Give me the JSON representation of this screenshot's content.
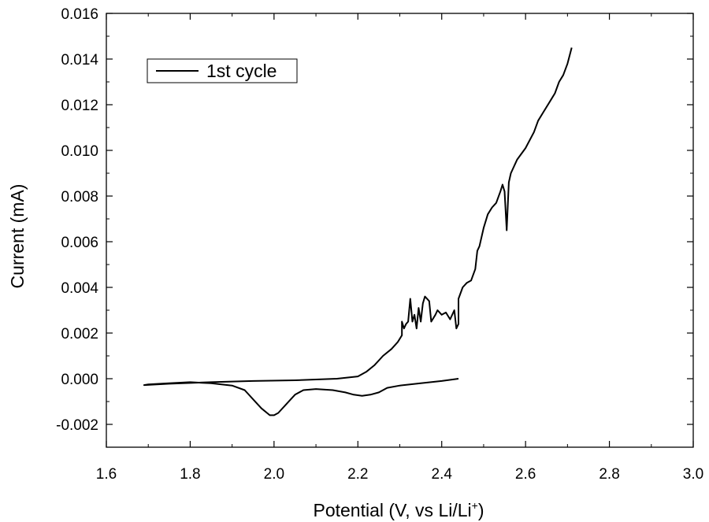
{
  "chart_data": {
    "type": "line",
    "title": "",
    "xlabel": "Potential (V, vs Li/Li",
    "xlabel_sup": "+",
    "xlabel_tail": ")",
    "ylabel": "Current (mA)",
    "xlim": [
      1.6,
      3.0
    ],
    "ylim": [
      -0.003,
      0.016
    ],
    "x_ticks": [
      1.6,
      1.8,
      2.0,
      2.2,
      2.4,
      2.6,
      2.8,
      3.0
    ],
    "x_tick_labels": [
      "1.6",
      "1.8",
      "2.0",
      "2.2",
      "2.4",
      "2.6",
      "2.8",
      "3.0"
    ],
    "y_ticks": [
      -0.002,
      0.0,
      0.002,
      0.004,
      0.006,
      0.008,
      0.01,
      0.012,
      0.014,
      0.016
    ],
    "y_tick_labels": [
      "-0.002",
      "0.000",
      "0.002",
      "0.004",
      "0.006",
      "0.008",
      "0.010",
      "0.012",
      "0.014",
      "0.016"
    ],
    "grid": false,
    "legend_position": "top-left",
    "series": [
      {
        "name": "1st cycle",
        "color": "#000000",
        "points": [
          [
            2.44,
            0.0
          ],
          [
            2.4,
            -0.0001
          ],
          [
            2.35,
            -0.0002
          ],
          [
            2.3,
            -0.0003
          ],
          [
            2.27,
            -0.0004
          ],
          [
            2.25,
            -0.0006
          ],
          [
            2.23,
            -0.0007
          ],
          [
            2.21,
            -0.00075
          ],
          [
            2.19,
            -0.0007
          ],
          [
            2.17,
            -0.0006
          ],
          [
            2.14,
            -0.0005
          ],
          [
            2.1,
            -0.00045
          ],
          [
            2.07,
            -0.0005
          ],
          [
            2.05,
            -0.0007
          ],
          [
            2.03,
            -0.0011
          ],
          [
            2.01,
            -0.0015
          ],
          [
            2.0,
            -0.0016
          ],
          [
            1.99,
            -0.0016
          ],
          [
            1.97,
            -0.0013
          ],
          [
            1.95,
            -0.0009
          ],
          [
            1.93,
            -0.0005
          ],
          [
            1.9,
            -0.0003
          ],
          [
            1.85,
            -0.0002
          ],
          [
            1.8,
            -0.00015
          ],
          [
            1.75,
            -0.0002
          ],
          [
            1.7,
            -0.00025
          ],
          [
            1.69,
            -0.00028
          ],
          [
            1.75,
            -0.00022
          ],
          [
            1.85,
            -0.00015
          ],
          [
            1.95,
            -0.0001
          ],
          [
            2.05,
            -7e-05
          ],
          [
            2.15,
            0.0
          ],
          [
            2.2,
            0.0001
          ],
          [
            2.22,
            0.0003
          ],
          [
            2.24,
            0.0006
          ],
          [
            2.26,
            0.001
          ],
          [
            2.28,
            0.0013
          ],
          [
            2.295,
            0.0016
          ],
          [
            2.305,
            0.0019
          ],
          [
            2.305,
            0.0025
          ],
          [
            2.31,
            0.0022
          ],
          [
            2.315,
            0.0024
          ],
          [
            2.32,
            0.0025
          ],
          [
            2.325,
            0.0035
          ],
          [
            2.33,
            0.0025
          ],
          [
            2.335,
            0.0028
          ],
          [
            2.34,
            0.0022
          ],
          [
            2.345,
            0.0031
          ],
          [
            2.35,
            0.0025
          ],
          [
            2.355,
            0.0033
          ],
          [
            2.36,
            0.0036
          ],
          [
            2.37,
            0.0034
          ],
          [
            2.375,
            0.0025
          ],
          [
            2.385,
            0.0028
          ],
          [
            2.39,
            0.003
          ],
          [
            2.4,
            0.0028
          ],
          [
            2.41,
            0.0029
          ],
          [
            2.42,
            0.0026
          ],
          [
            2.43,
            0.003
          ],
          [
            2.435,
            0.0022
          ],
          [
            2.44,
            0.0024
          ],
          [
            2.44,
            0.0035
          ],
          [
            2.45,
            0.004
          ],
          [
            2.46,
            0.0042
          ],
          [
            2.47,
            0.0043
          ],
          [
            2.48,
            0.0048
          ],
          [
            2.485,
            0.0056
          ],
          [
            2.49,
            0.0058
          ],
          [
            2.5,
            0.0066
          ],
          [
            2.51,
            0.0072
          ],
          [
            2.52,
            0.0075
          ],
          [
            2.53,
            0.0077
          ],
          [
            2.54,
            0.0082
          ],
          [
            2.545,
            0.0085
          ],
          [
            2.55,
            0.0082
          ],
          [
            2.555,
            0.0065
          ],
          [
            2.56,
            0.0086
          ],
          [
            2.565,
            0.009
          ],
          [
            2.58,
            0.0096
          ],
          [
            2.6,
            0.0101
          ],
          [
            2.62,
            0.0108
          ],
          [
            2.63,
            0.0113
          ],
          [
            2.64,
            0.0116
          ],
          [
            2.66,
            0.0122
          ],
          [
            2.67,
            0.0125
          ],
          [
            2.68,
            0.013
          ],
          [
            2.69,
            0.0133
          ],
          [
            2.7,
            0.0138
          ],
          [
            2.71,
            0.0145
          ]
        ]
      }
    ]
  }
}
